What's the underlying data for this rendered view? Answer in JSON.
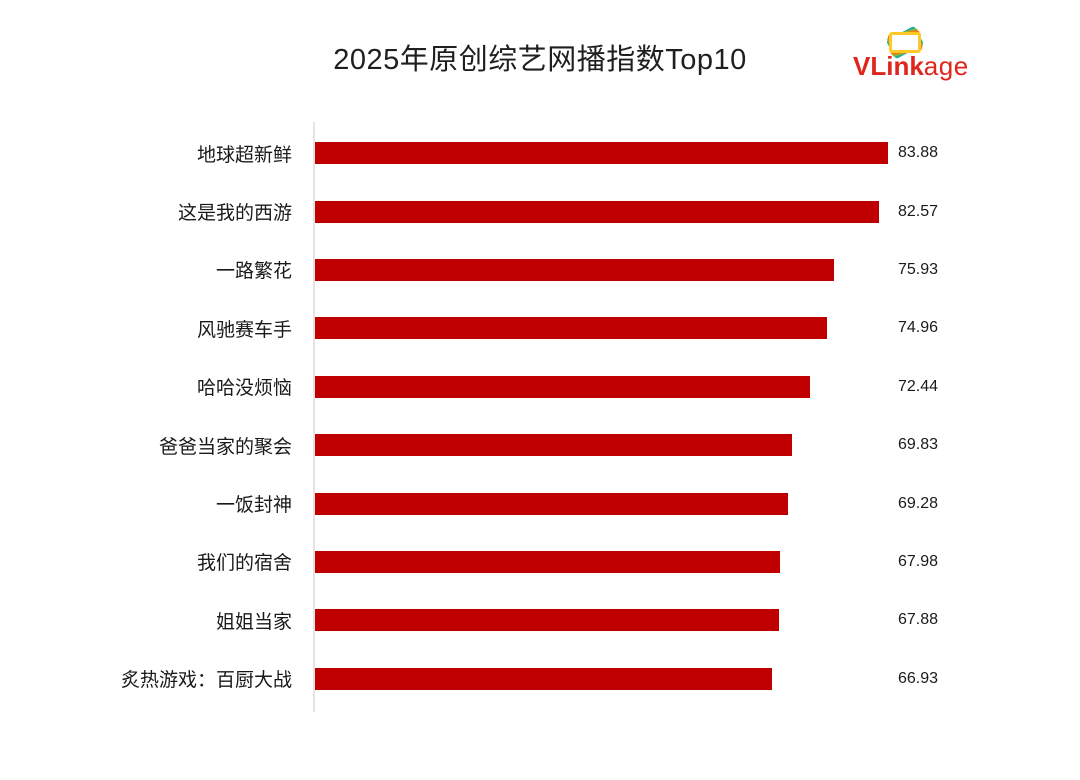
{
  "header": {
    "title": "2025年原创综艺网播指数Top10",
    "logo": {
      "text_bold": "VLink",
      "text_light": "age",
      "color": "#e0251d"
    }
  },
  "chart_data": {
    "type": "bar",
    "orientation": "horizontal",
    "title": "2025年原创综艺网播指数Top10",
    "categories": [
      "地球超新鲜",
      "这是我的西游",
      "一路繁花",
      "风驰赛车手",
      "哈哈没烦恼",
      "爸爸当家的聚会",
      "一饭封神",
      "我们的宿舍",
      "姐姐当家",
      "炙热游戏：百厨大战"
    ],
    "values": [
      83.88,
      82.57,
      75.93,
      74.96,
      72.44,
      69.83,
      69.28,
      67.98,
      67.88,
      66.93
    ],
    "value_labels": [
      "83.88",
      "82.57",
      "75.93",
      "74.96",
      "72.44",
      "69.83",
      "69.28",
      "67.98",
      "67.88",
      "66.93"
    ],
    "xlabel": "",
    "ylabel": "",
    "xlim": [
      0,
      84
    ],
    "grid": false,
    "legend": null,
    "value_labels_shown": true,
    "bar_color": "#c00000"
  },
  "colors": {
    "bar": "#c00000",
    "axis_line": "#e4e4e4",
    "title_text": "#1f1f1f",
    "label_text": "#1a1a1a",
    "logo_red": "#e0251d",
    "logo_card_colors": [
      "#1aae9f",
      "#7ab840",
      "#f07e1e",
      "#ffc826"
    ]
  }
}
